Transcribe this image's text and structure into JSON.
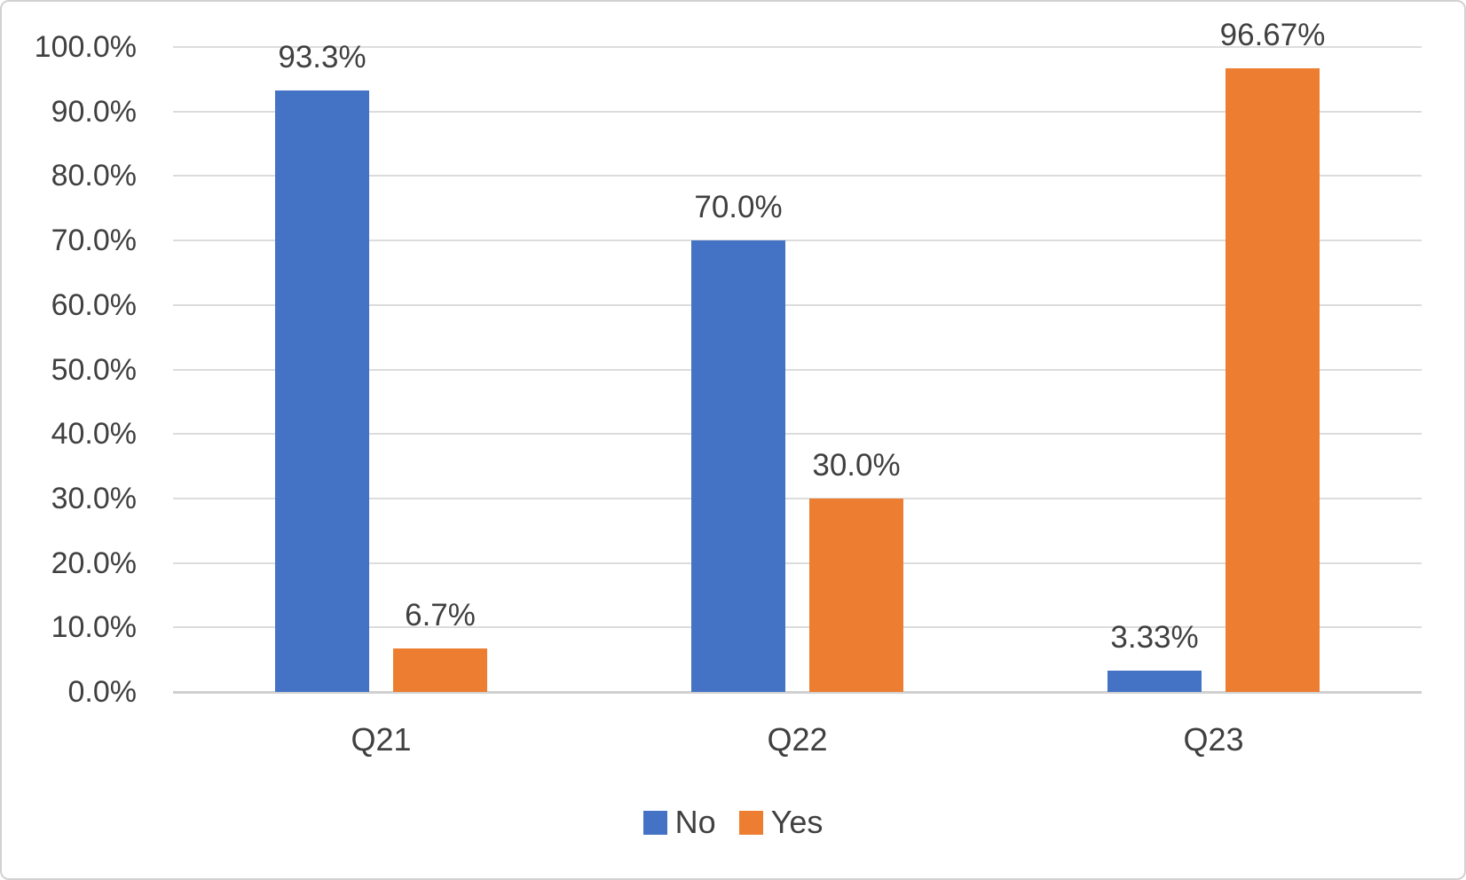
{
  "chart_data": {
    "type": "bar",
    "categories": [
      "Q21",
      "Q22",
      "Q23"
    ],
    "series": [
      {
        "name": "No",
        "color": "#4472C4",
        "values": [
          93.3,
          70.0,
          3.33
        ],
        "labels": [
          "93.3%",
          "70.0%",
          "3.33%"
        ]
      },
      {
        "name": "Yes",
        "color": "#ED7D31",
        "values": [
          6.7,
          30.0,
          96.67
        ],
        "labels": [
          "6.7%",
          "30.0%",
          "96.67%"
        ]
      }
    ],
    "title": "",
    "xlabel": "",
    "ylabel": "",
    "ylim": [
      0,
      100
    ],
    "ytick_step": 10,
    "ytick_labels": [
      "0.0%",
      "10.0%",
      "20.0%",
      "30.0%",
      "40.0%",
      "50.0%",
      "60.0%",
      "70.0%",
      "80.0%",
      "90.0%",
      "100.0%"
    ],
    "grid": true,
    "legend_position": "bottom"
  },
  "legend": {
    "items": [
      {
        "label": "No",
        "color": "#4472C4"
      },
      {
        "label": "Yes",
        "color": "#ED7D31"
      }
    ]
  },
  "colors": {
    "series_no": "#4472C4",
    "series_yes": "#ED7D31",
    "gridline": "#DCDCDC",
    "axis_line": "#D0D0D0",
    "text": "#404040",
    "frame_border": "#D2D2D2",
    "background": "#FFFFFF"
  }
}
